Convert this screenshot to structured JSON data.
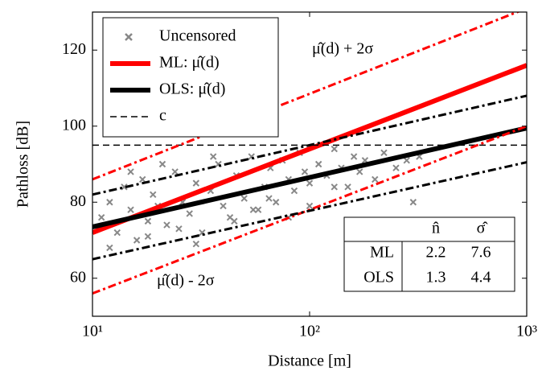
{
  "chart_data": {
    "type": "scatter-lines",
    "x_label": "Distance [m]",
    "y_label": "Pathloss [dB]",
    "log_x": true,
    "xlim": [
      10,
      1000
    ],
    "xticks": [
      {
        "value": 10,
        "label": "10¹"
      },
      {
        "value": 100,
        "label": "10²"
      },
      {
        "value": 1000,
        "label": "10³"
      }
    ],
    "ylim": [
      50,
      130
    ],
    "yticks": [
      60,
      80,
      100,
      120
    ],
    "scatter": {
      "name": "Uncensored",
      "color": "#888888",
      "x": [
        11,
        12,
        13,
        14,
        15,
        16,
        17,
        18,
        19,
        20,
        22,
        24,
        26,
        28,
        30,
        32,
        35,
        38,
        40,
        43,
        46,
        50,
        54,
        58,
        62,
        66,
        70,
        75,
        80,
        85,
        90,
        95,
        100,
        110,
        120,
        130,
        140,
        150,
        160,
        170,
        180,
        200,
        220,
        250,
        280,
        300,
        320,
        12,
        15,
        18,
        21,
        25,
        30,
        36,
        45,
        55,
        65,
        80,
        100,
        130
      ],
      "values": [
        76,
        80,
        72,
        84,
        78,
        70,
        86,
        75,
        82,
        79,
        74,
        88,
        80,
        77,
        85,
        72,
        83,
        90,
        79,
        76,
        87,
        81,
        92,
        78,
        84,
        89,
        80,
        91,
        86,
        83,
        93,
        88,
        85,
        90,
        87,
        94,
        89,
        84,
        92,
        88,
        91,
        86,
        93,
        89,
        91,
        80,
        92,
        68,
        88,
        71,
        90,
        73,
        69,
        92,
        75,
        78,
        81,
        76,
        79,
        84
      ]
    },
    "series": [
      {
        "name": "ML: μ̂(d)",
        "color": "#ff0000",
        "width": 6,
        "dash": "solid",
        "x": [
          10,
          1000
        ],
        "values": [
          72,
          116
        ]
      },
      {
        "name": "OLS: μ̂(d)",
        "color": "#000000",
        "width": 6,
        "dash": "solid",
        "x": [
          10,
          1000
        ],
        "values": [
          73.5,
          99.5
        ]
      },
      {
        "name": "c",
        "color": "#000000",
        "width": 1.5,
        "dash": "dashed",
        "x": [
          10,
          1000
        ],
        "values": [
          95,
          95
        ]
      },
      {
        "color": "#ff0000",
        "width": 3,
        "dash": "dashdot",
        "x": [
          10,
          1000
        ],
        "values": [
          86,
          131
        ]
      },
      {
        "color": "#ff0000",
        "width": 3,
        "dash": "dashdot",
        "x": [
          10,
          1000
        ],
        "values": [
          56,
          100
        ]
      },
      {
        "color": "#000000",
        "width": 3,
        "dash": "dashdot",
        "x": [
          10,
          1000
        ],
        "values": [
          82,
          108
        ]
      },
      {
        "color": "#000000",
        "width": 3,
        "dash": "dashdot",
        "x": [
          10,
          1000
        ],
        "values": [
          65,
          90.5
        ]
      }
    ],
    "annotations": [
      "μ̂(d) + 2σ",
      "μ̂(d) - 2σ"
    ],
    "table": {
      "columns": [
        "n̂",
        "σ̂"
      ],
      "rows": [
        {
          "label": "ML",
          "values": [
            2.2,
            7.6
          ]
        },
        {
          "label": "OLS",
          "values": [
            1.3,
            4.4
          ]
        }
      ]
    }
  }
}
